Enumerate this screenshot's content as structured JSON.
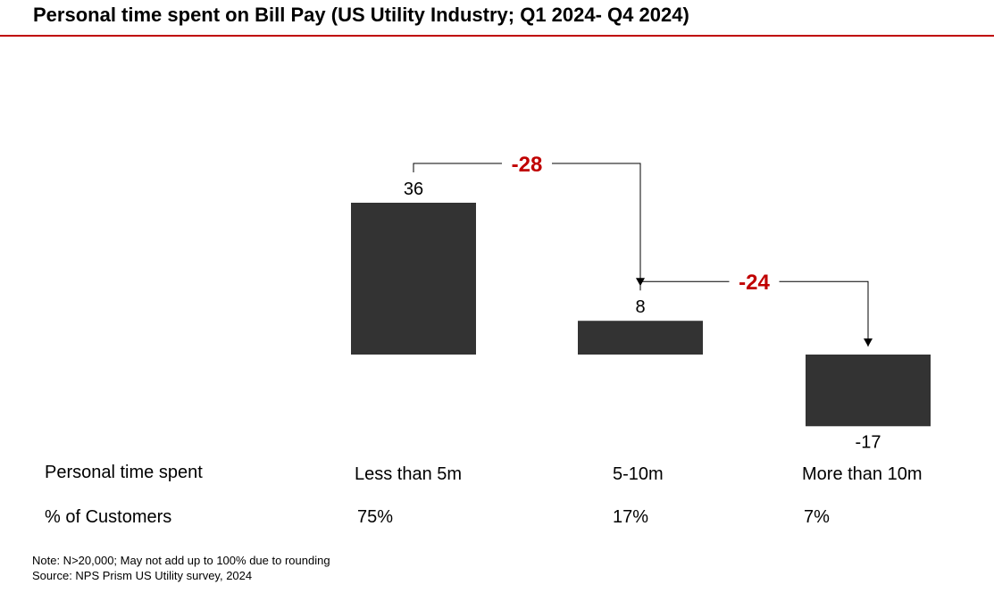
{
  "title": "Personal time spent on Bill Pay (US Utility Industry; Q1 2024- Q4 2024)",
  "colors": {
    "bar": "#333333",
    "accent": "#c00000",
    "connector": "#000000"
  },
  "chart_data": {
    "type": "bar",
    "categories": [
      "Less than 5m",
      "5-10m",
      "More than 10m"
    ],
    "values": [
      36,
      8,
      -17
    ],
    "data_labels": [
      "36",
      "8",
      "-17"
    ],
    "baseline": 0,
    "differences": [
      {
        "from": 0,
        "to": 1,
        "label": "-28"
      },
      {
        "from": 1,
        "to": 2,
        "label": "-24"
      }
    ]
  },
  "table": {
    "row1_label": "Personal time spent",
    "row1_values": [
      "Less than 5m",
      "5-10m",
      "More than 10m"
    ],
    "row2_label": "% of Customers",
    "row2_values": [
      "75%",
      "17%",
      "7%"
    ]
  },
  "notes": {
    "note": "Note: N>20,000; May not add up to 100% due to rounding",
    "source": "Source: NPS Prism US Utility survey, 2024"
  }
}
